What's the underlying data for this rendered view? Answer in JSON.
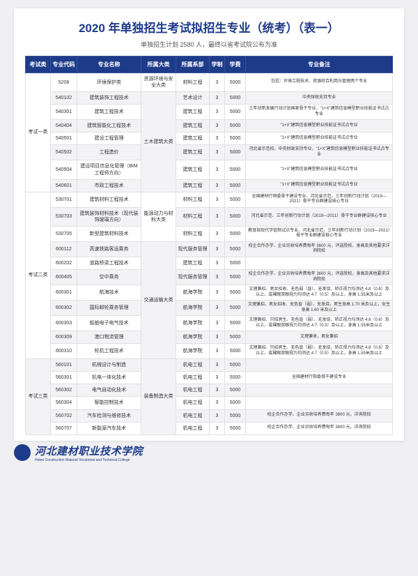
{
  "title": "2020 年单独招生考试拟招生专业（统考）（表一）",
  "subtitle": "单独招生计划 2580 人，最终以省考试院公布为准",
  "headers": [
    "考试类",
    "专业代码",
    "专业名称",
    "所属大类",
    "所属系部",
    "学制",
    "学费",
    "专业备注"
  ],
  "footer": {
    "name": "河北建材职业技术学院",
    "sub": "Hebei Construction Material Vocational and Technical College"
  },
  "groups": [
    {
      "exam": "考试一类",
      "rows": [
        {
          "code": "5208",
          "name": "环境保护类",
          "cat": "资源环境与安全大类",
          "catSpan": 1,
          "dept": "材料工程",
          "sys": "3",
          "fee": "5000",
          "note": "包括：环境工程技术、资源综合利用与管理两个专业",
          "alt": false
        },
        {
          "code": "540102",
          "name": "建筑装饰工程技术",
          "cat": "土木建筑大类",
          "catSpan": 7,
          "dept": "艺术设计",
          "sys": "3",
          "fee": "5000",
          "note": "中央财政支持专业",
          "alt": true
        },
        {
          "code": "540301",
          "name": "建筑工程技术",
          "dept": "建筑工程",
          "sys": "3",
          "fee": "5000",
          "note": "三年创新发展行动计划国家骨干专业，\"1+X\"建筑信息模型职业技能证书试点专业",
          "alt": false
        },
        {
          "code": "540404",
          "name": "建筑智能化工程技术",
          "dept": "建筑工程",
          "sys": "3",
          "fee": "5000",
          "note": "\"1+X\"建筑信息模型职业技能证书试点专业",
          "alt": true
        },
        {
          "code": "540501",
          "name": "建设工程管理",
          "dept": "建筑工程",
          "sys": "3",
          "fee": "5000",
          "note": "\"1+X\"建筑信息模型职业技能证书试点专业",
          "alt": false
        },
        {
          "code": "540502",
          "name": "工程造价",
          "dept": "建筑工程",
          "sys": "3",
          "fee": "5000",
          "note": "河北省示范校、中央财政支持专业，\"1+X\"建筑信息模型职业技能证书试点专业",
          "alt": true
        },
        {
          "code": "540504",
          "name": "建设项目信息化管理（BIM 工程师方向）",
          "dept": "建筑工程",
          "sys": "3",
          "fee": "5000",
          "note": "\"1+X\"建筑信息模型职业技能证书试点专业",
          "alt": false
        },
        {
          "code": "540601",
          "name": "市政工程技术",
          "dept": "建筑工程",
          "sys": "3",
          "fee": "5000",
          "note": "\"1+X\"建筑信息模型职业技能证书试点专业",
          "alt": true
        }
      ]
    },
    {
      "exam": "考试二类",
      "rows": [
        {
          "code": "530701",
          "name": "建筑材料工程技术",
          "cat": "能源动力与材料大类",
          "catSpan": 3,
          "dept": "材料工程",
          "sys": "3",
          "fee": "5000",
          "note": "全国建材行销委骨干建设专业、河北省示范，三年创新行动计划（2019—2021）骨干专业群建设核心专业",
          "alt": false
        },
        {
          "code": "530703",
          "name": "建筑装饰材料技术（现代装饰玻璃方向）",
          "dept": "材料工程",
          "sys": "3",
          "fee": "5000",
          "note": "河北省示范、三年创新行动计划（2019—2021）骨干专业群建设核心专业",
          "alt": true
        },
        {
          "code": "530705",
          "name": "新型建筑材料技术",
          "dept": "材料工程",
          "sys": "3",
          "fee": "5000",
          "note": "教育部现代学徒制试点专业、河北省示范、三年创新行动计划（2019—2021）骨干专业群建设核心专业",
          "alt": false
        },
        {
          "code": "600112",
          "name": "高速铁路客运乘务",
          "cat": "交通运输大类",
          "catSpan": 8,
          "dept": "现代服务管理",
          "sys": "3",
          "fee": "5000",
          "note": "校企合作办学、企业另收培养费每年 3600 元，评选院校，身高及其他要求详询院校",
          "alt": true
        },
        {
          "code": "600202",
          "name": "道路桥梁工程技术",
          "dept": "建筑工程",
          "sys": "3",
          "fee": "5000",
          "note": "",
          "alt": false
        },
        {
          "code": "600405",
          "name": "空中乘务",
          "dept": "现代服务管理",
          "sys": "3",
          "fee": "5000",
          "note": "校企合作办学、企业另收培养费每年 3600 元，评选院校，身高及其他要求详询院校",
          "alt": true
        },
        {
          "code": "600301",
          "name": "航海技术",
          "dept": "航海学院",
          "sys": "3",
          "fee": "5000",
          "note": "文理兼招、男女招收、无色弱（盲）、无发烧，矫正视力均须达 4.8（0.6）及以上，或裸眼双眼视力均须达 4.7（0.5）及以上，身高 1.55米及以上",
          "alt": false
        },
        {
          "code": "600302",
          "name": "国际邮轮乘务管理",
          "dept": "航海学院",
          "sys": "3",
          "fee": "5000",
          "note": "文理兼招、男女招收、无色盲（弱）、无发烧，男生身高 1.70 米及以上，女生身高 1.60 米及以上",
          "alt": true
        },
        {
          "code": "600303",
          "name": "船舶电子电气技术",
          "dept": "航海学院",
          "sys": "3",
          "fee": "5000",
          "note": "文理兼招、只招男生、无色盲（弱）、无发烧，矫正视力均须达 4.8（0.6）及以上，或裸眼双眼视力均须达 4.7（0.5）及以上，身高 1.55米及以上",
          "alt": false
        },
        {
          "code": "600309",
          "name": "港口物流管理",
          "dept": "航海学院",
          "sys": "3",
          "fee": "5000",
          "note": "文理兼收，男女兼招",
          "alt": true
        },
        {
          "code": "600310",
          "name": "轮机工程技术",
          "dept": "航海学院",
          "sys": "3",
          "fee": "5000",
          "note": "文理兼招、只招男生、无色盲（弱）、无发烧，矫正视力均须达 4.8（0.6）及以上，或裸眼双眼视力均须达 4.7（0.5）及以上，身高 1.55米及以上",
          "alt": false
        }
      ]
    },
    {
      "exam": "考试三类",
      "rows": [
        {
          "code": "560101",
          "name": "机械设计与制造",
          "cat": "装备制造大类",
          "catSpan": 6,
          "dept": "机电工程",
          "sys": "3",
          "fee": "5000",
          "note": "",
          "alt": true
        },
        {
          "code": "560301",
          "name": "机电一体化技术",
          "dept": "机电工程",
          "sys": "3",
          "fee": "5000",
          "note": "全国建材行指委骨干建设专业",
          "alt": false
        },
        {
          "code": "560302",
          "name": "电气自动化技术",
          "dept": "机电工程",
          "sys": "3",
          "fee": "5000",
          "note": "",
          "alt": true
        },
        {
          "code": "560304",
          "name": "智能控制技术",
          "dept": "机电工程",
          "sys": "3",
          "fee": "5000",
          "note": "",
          "alt": false
        },
        {
          "code": "560702",
          "name": "汽车检测与维修技术",
          "dept": "机电工程",
          "sys": "3",
          "fee": "5000",
          "note": "校企合作办学、企业另收培养费每年 3800 元，详询院校",
          "alt": true
        },
        {
          "code": "560707",
          "name": "新能源汽车技术",
          "dept": "机电工程",
          "sys": "3",
          "fee": "5000",
          "note": "校企合作办学、企业另收培养费每年 3800 元，详询院校",
          "alt": false
        }
      ]
    }
  ]
}
